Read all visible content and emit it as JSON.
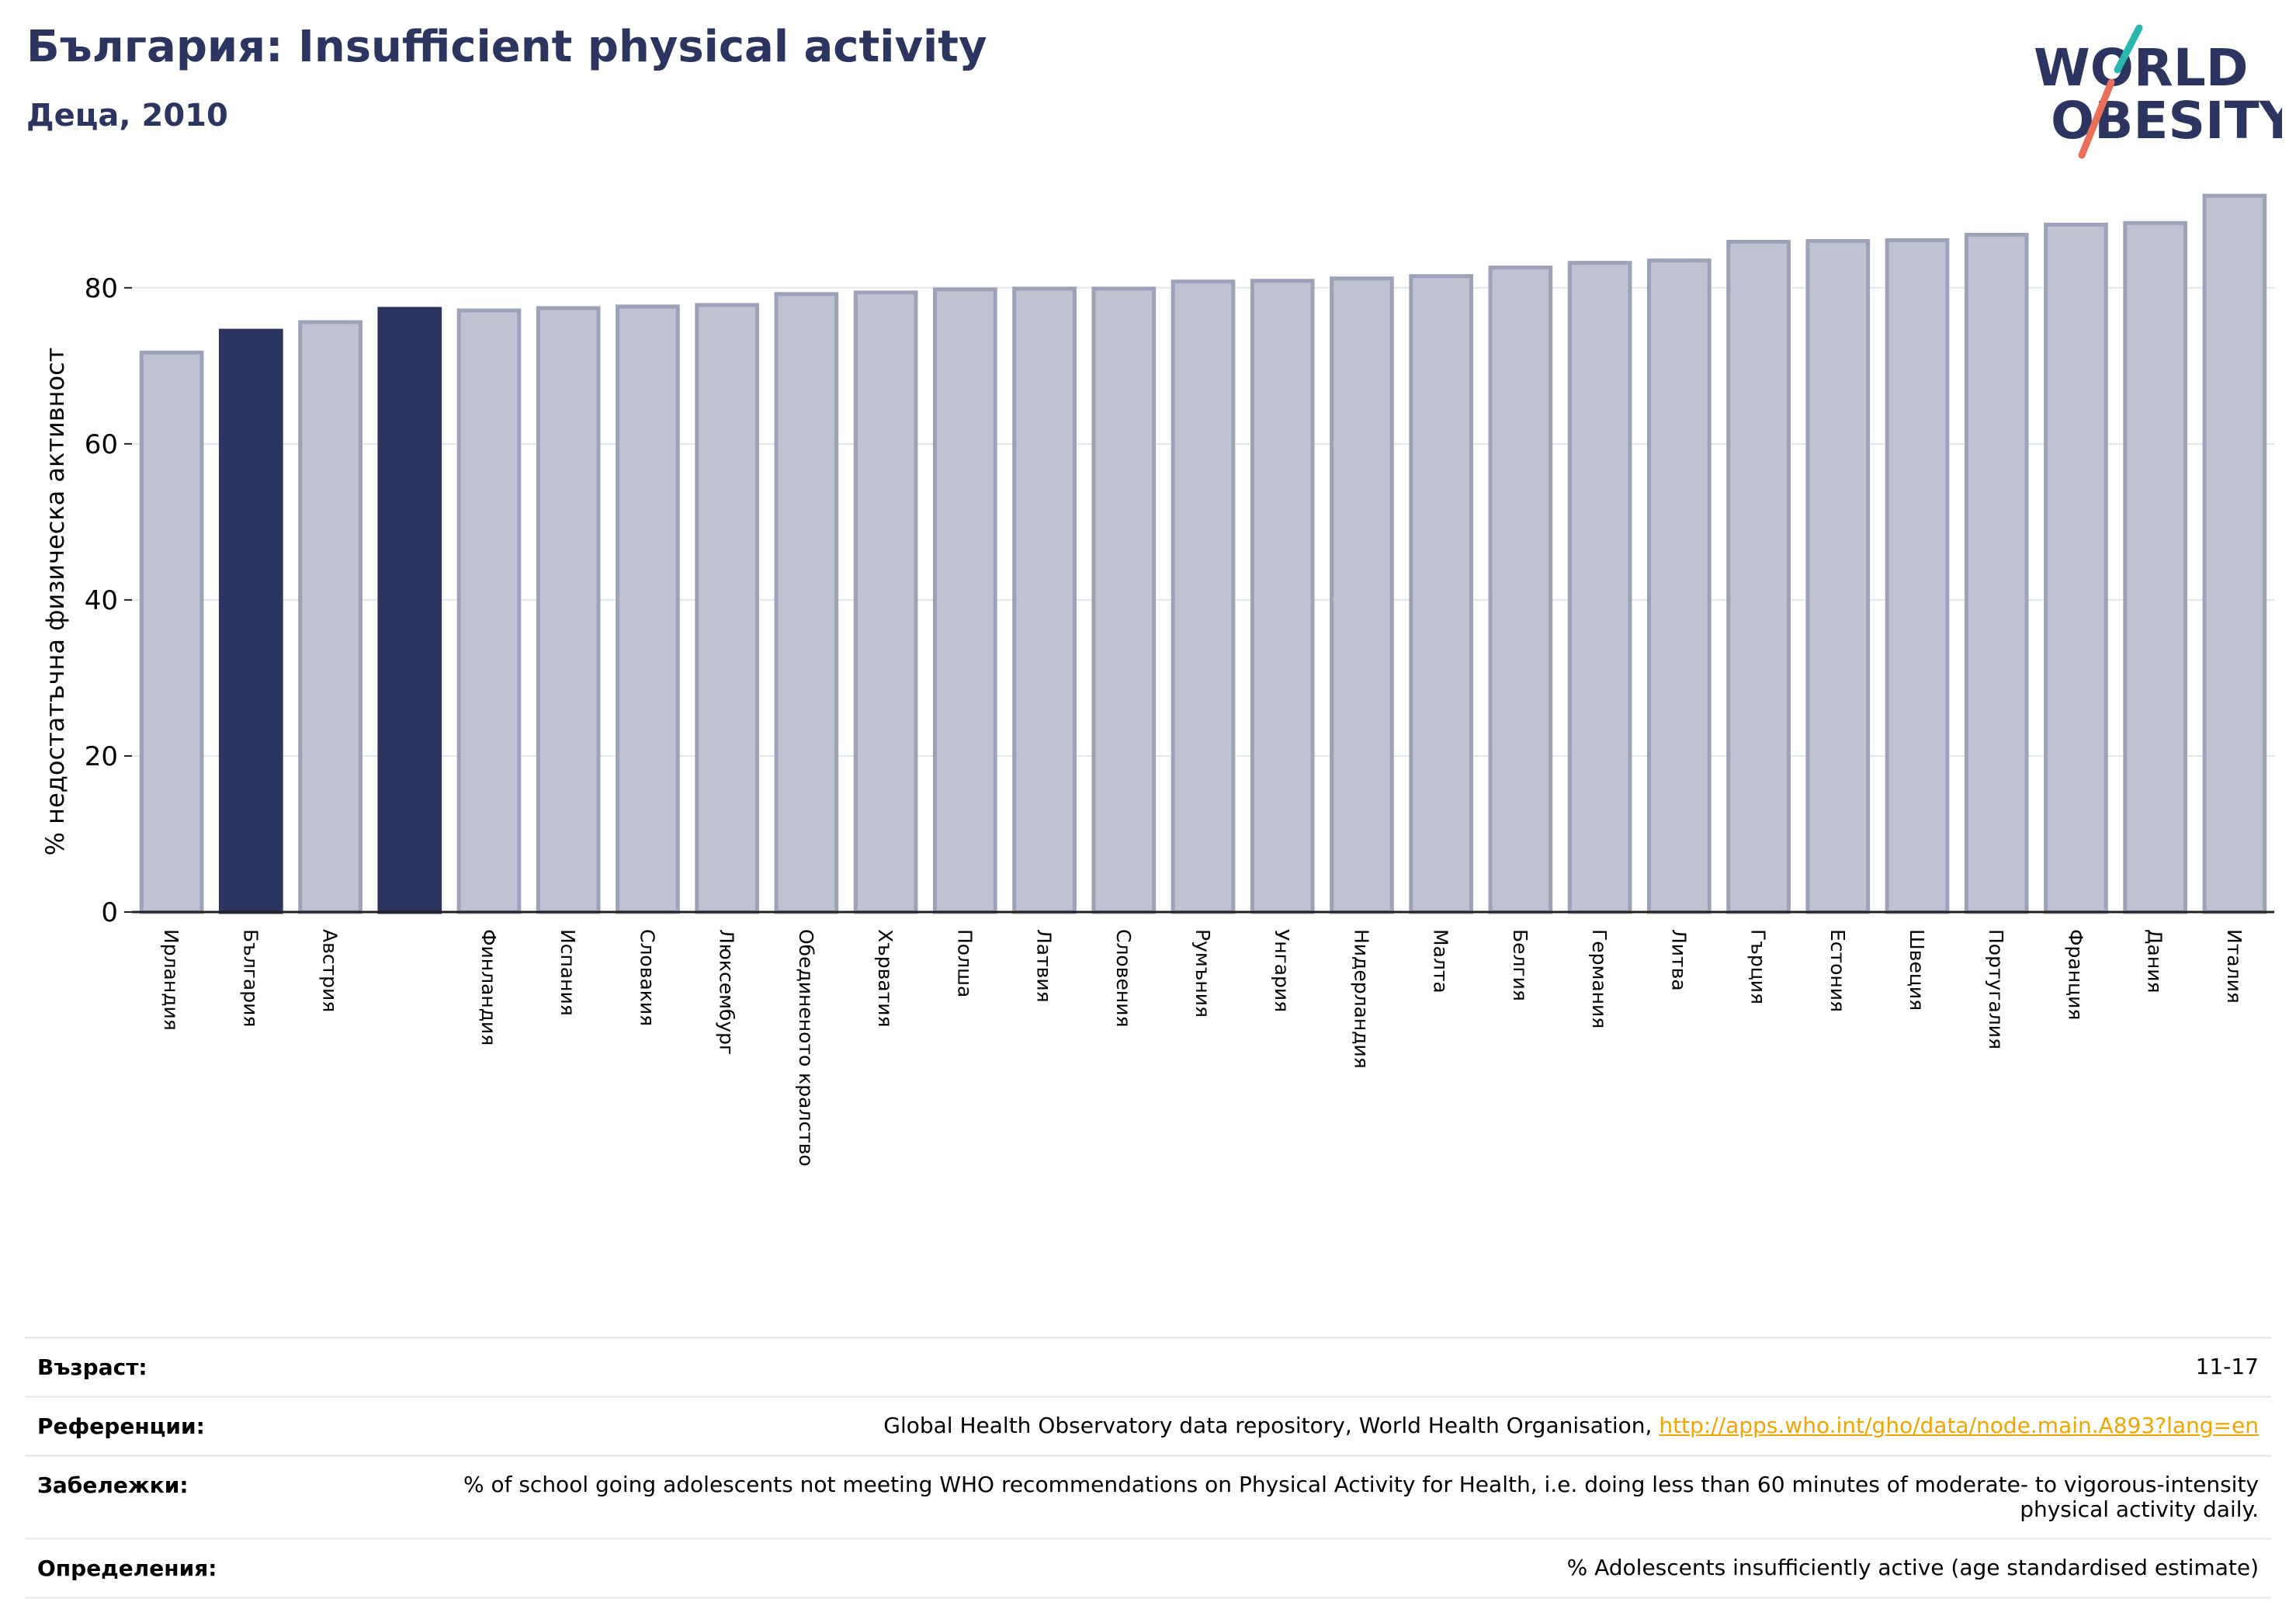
{
  "header": {
    "title": "България: Insufficient physical activity",
    "subtitle": "Деца, 2010"
  },
  "logo": {
    "line1": "WORLD",
    "line2": "OBESITY",
    "colors": {
      "text": "#2b3560",
      "slash_top": "#2bb5b0",
      "slash_bottom": "#e8705a"
    }
  },
  "chart_data": {
    "type": "bar",
    "ylabel": "% недостатъчна физическа активност",
    "ylim": [
      0,
      95
    ],
    "yticks": [
      0,
      20,
      40,
      60,
      80
    ],
    "grid": true,
    "colors": {
      "default": "#bfc2d0",
      "default_edge": "#9da2b8",
      "highlight": "#2b3560"
    },
    "categories": [
      "Ирландия",
      "България",
      "Австрия",
      "",
      "Финландия",
      "Испания",
      "Словакия",
      "Люксембург",
      "Обединеното кралство",
      "Хърватия",
      "Полша",
      "Латвия",
      "Словения",
      "Румъния",
      "Унгария",
      "Нидерландия",
      "Малта",
      "Белгия",
      "Германия",
      "Литва",
      "Гърция",
      "Естония",
      "Швеция",
      "Португалия",
      "Франция",
      "Дания",
      "Италия"
    ],
    "values": [
      71.7,
      74.5,
      75.6,
      77.3,
      77.1,
      77.4,
      77.6,
      77.8,
      79.2,
      79.4,
      79.8,
      79.9,
      79.9,
      80.8,
      80.9,
      81.2,
      81.5,
      82.6,
      83.2,
      83.5,
      85.9,
      86.0,
      86.1,
      86.8,
      88.1,
      88.3,
      91.8
    ],
    "highlighted": [
      false,
      true,
      false,
      true,
      false,
      false,
      false,
      false,
      false,
      false,
      false,
      false,
      false,
      false,
      false,
      false,
      false,
      false,
      false,
      false,
      false,
      false,
      false,
      false,
      false,
      false,
      false
    ]
  },
  "meta": {
    "age": {
      "label": "Възраст:",
      "value": "11-17"
    },
    "references": {
      "label": "Референции:",
      "text": "Global Health Observatory data repository, World Health Organisation, ",
      "link": "http://apps.who.int/gho/data/node.main.A893?lang=en"
    },
    "notes": {
      "label": "Забележки:",
      "value": "% of school going adolescents not meeting WHO recommendations on Physical Activity for Health, i.e. doing less than 60 minutes of moderate- to vigorous-intensity physical activity daily."
    },
    "definitions": {
      "label": "Определения:",
      "value": "% Adolescents insufficiently active (age standardised estimate)"
    }
  }
}
